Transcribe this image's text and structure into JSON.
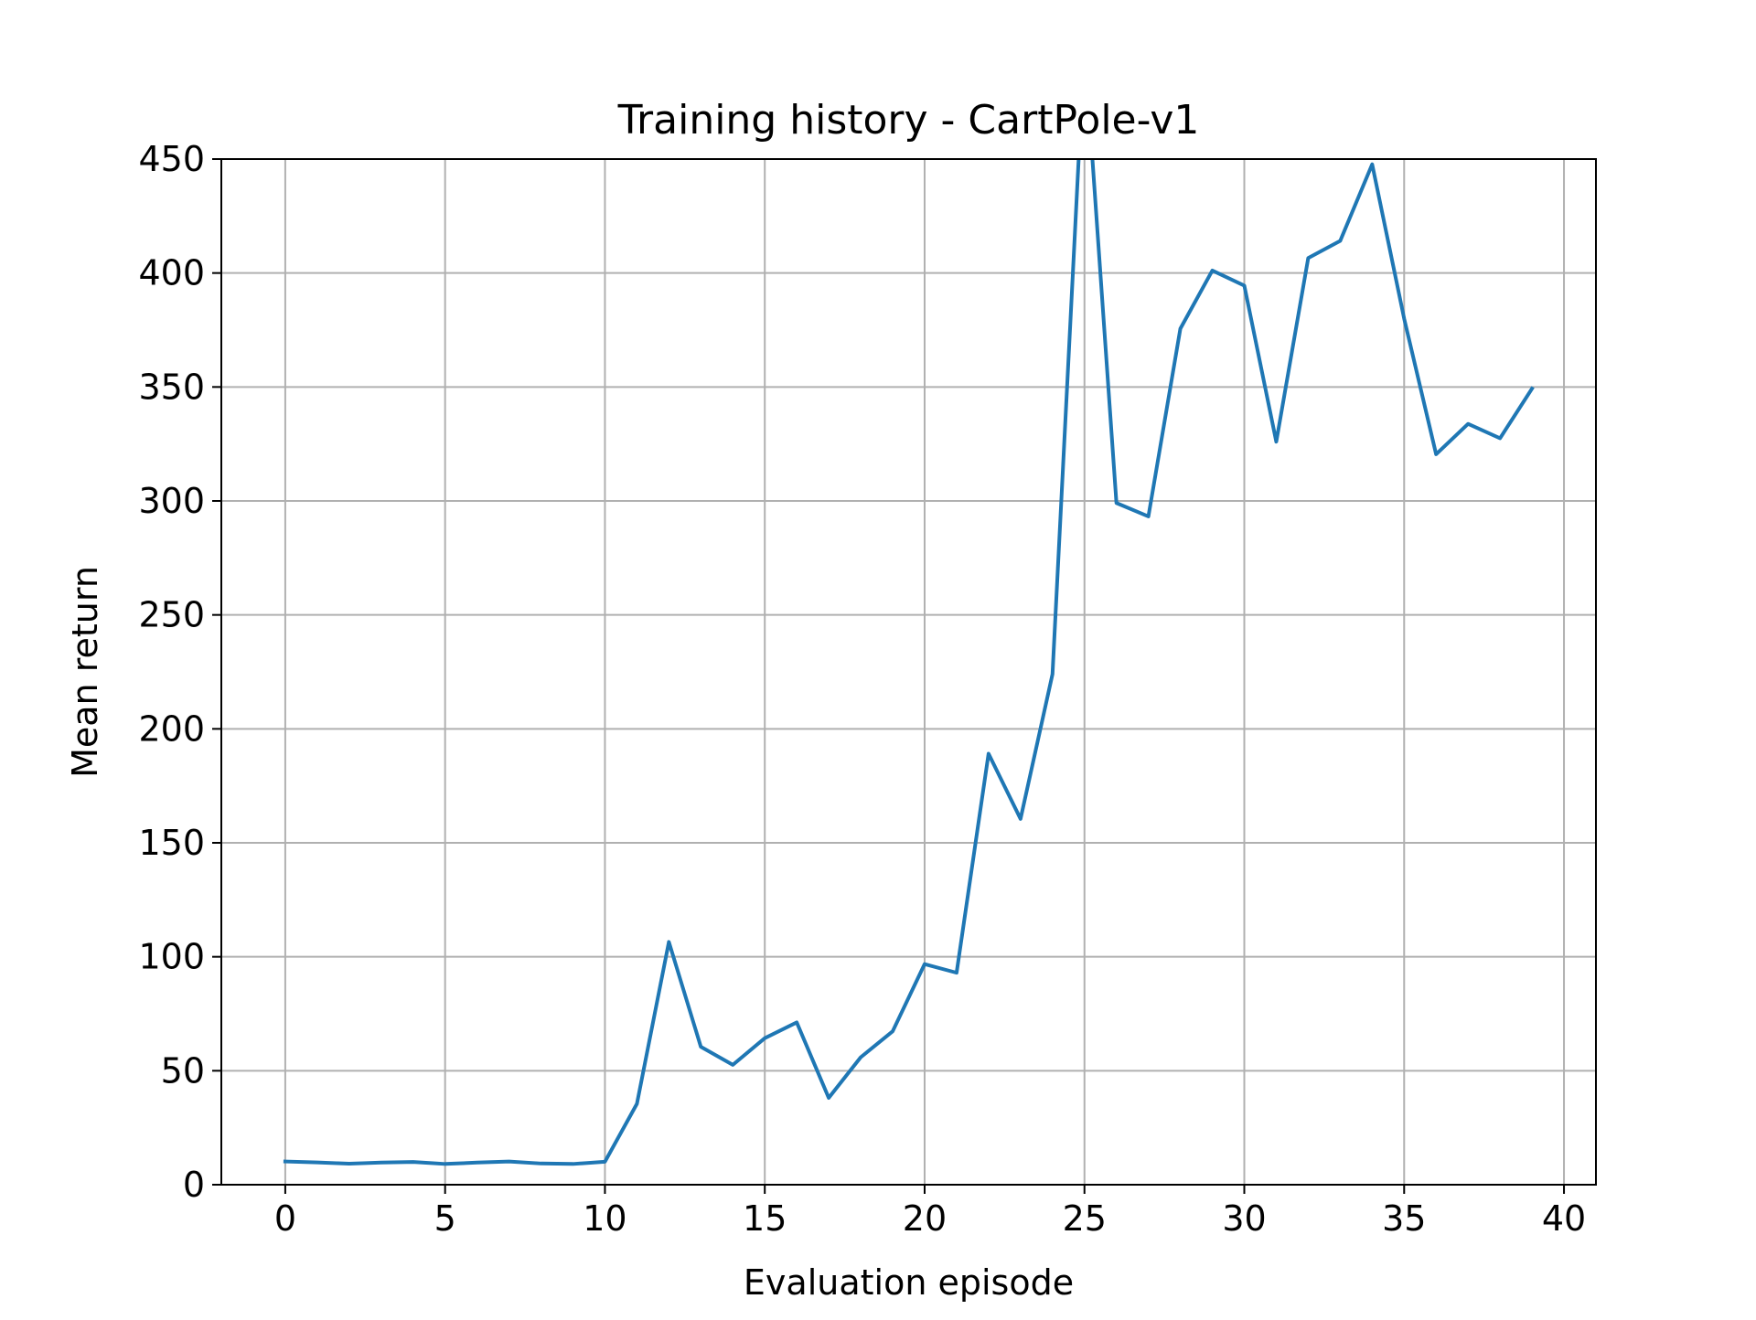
{
  "chart_data": {
    "type": "line",
    "title": "Training history - CartPole-v1",
    "xlabel": "Evaluation episode",
    "ylabel": "Mean return",
    "xlim": [
      -2,
      41
    ],
    "ylim": [
      0,
      450
    ],
    "xticks": [
      0,
      5,
      10,
      15,
      20,
      25,
      30,
      35,
      40
    ],
    "yticks": [
      0,
      50,
      100,
      150,
      200,
      250,
      300,
      350,
      400,
      450
    ],
    "grid": true,
    "line_color": "#1f77b4",
    "grid_color": "#b0b0b0",
    "series": [
      {
        "x": [
          0,
          1,
          2,
          3,
          4,
          5,
          6,
          7,
          8,
          9,
          10,
          11,
          12,
          13,
          14,
          15,
          16,
          17,
          18,
          19,
          20,
          21,
          22,
          23,
          24,
          25,
          26,
          27,
          28,
          29,
          30,
          31,
          32,
          33,
          34,
          35,
          36,
          37,
          38,
          39
        ],
        "y": [
          10.2,
          9.8,
          9.2,
          9.7,
          10.0,
          9.1,
          9.7,
          10.2,
          9.3,
          9.1,
          10.1,
          35.5,
          106.5,
          60.5,
          52.6,
          64.3,
          71.2,
          38.1,
          55.9,
          67.3,
          96.8,
          93.0,
          189.1,
          160.5,
          224.0,
          500.0,
          299.1,
          293.2,
          375.6,
          401.1,
          394.5,
          326.0,
          406.6,
          414.1,
          447.7,
          380.0,
          320.5,
          333.8,
          327.5,
          349.3
        ]
      }
    ]
  }
}
